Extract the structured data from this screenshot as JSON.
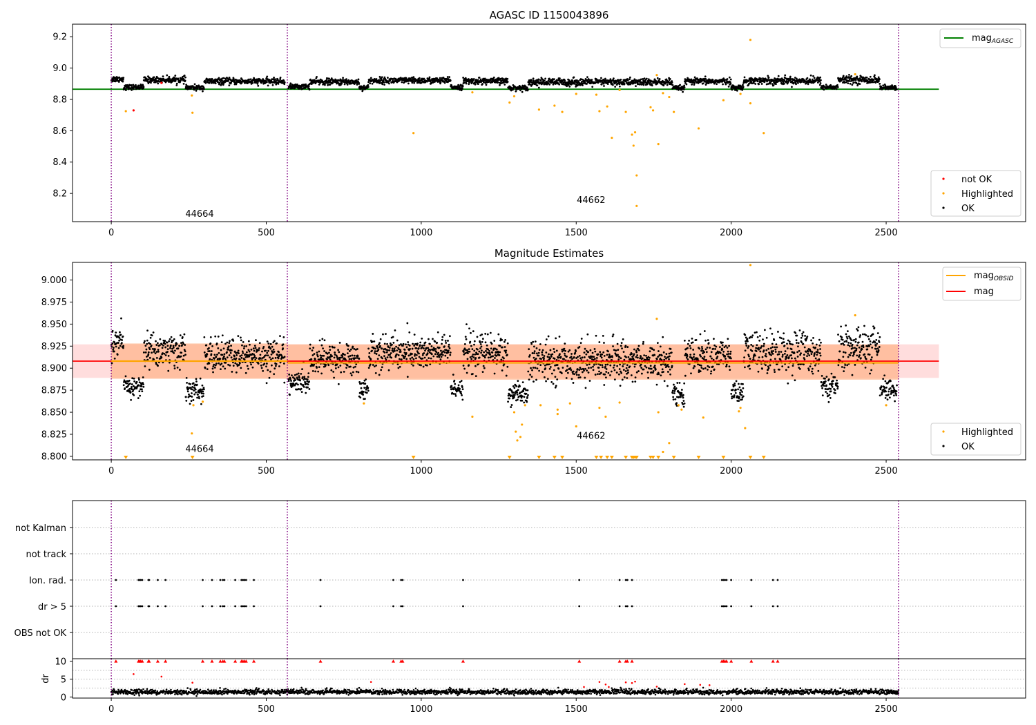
{
  "figure": {
    "title": "AGASC ID 1150043896"
  },
  "colors": {
    "ok": "#000000",
    "highlighted": "#ffa500",
    "not_ok": "#ff0000",
    "agasc_line": "#008000",
    "mag_line": "#ff0000",
    "mag_obsid_line": "#ffa500",
    "obs_boundary": "#800080",
    "band_obsid": "#ffb48c",
    "band_total": "#ffd2d2"
  },
  "chart_data": [
    {
      "id": "panel1",
      "type": "scatter",
      "title": "AGASC ID 1150043896",
      "xlim": [
        -125,
        2950
      ],
      "ylim": [
        8.02,
        9.28
      ],
      "xticks": [
        0,
        500,
        1000,
        1500,
        2000,
        2500
      ],
      "yticks": [
        8.2,
        8.4,
        8.6,
        8.8,
        9.0,
        9.2
      ],
      "ytick_format": 1,
      "obs_boundaries": [
        0,
        568,
        2540
      ],
      "obs_labels": [
        {
          "text": "44664",
          "x": 285,
          "y": 8.05
        },
        {
          "text": "44662",
          "x": 1548,
          "y": 8.14
        }
      ],
      "hlines": [
        {
          "name": "mag",
          "sub": "AGASC",
          "y": 8.865,
          "x0": -125,
          "x1": 2670,
          "color": "#008000"
        }
      ],
      "legend_top": [
        {
          "label": "mag",
          "sub": "AGASC",
          "color": "#008000"
        }
      ],
      "legend_bottom": [
        {
          "label": "not OK",
          "color": "#ff0000"
        },
        {
          "label": "Highlighted",
          "color": "#ffa500"
        },
        {
          "label": "OK",
          "color": "#000000"
        }
      ],
      "segments": [
        {
          "x0": 0,
          "x1": 40,
          "m": 8.93,
          "s": 0.01
        },
        {
          "x0": 40,
          "x1": 105,
          "m": 8.878,
          "s": 0.008
        },
        {
          "x0": 105,
          "x1": 240,
          "m": 8.925,
          "s": 0.01
        },
        {
          "x0": 240,
          "x1": 300,
          "m": 8.875,
          "s": 0.008
        },
        {
          "x0": 300,
          "x1": 560,
          "m": 8.915,
          "s": 0.01
        },
        {
          "x0": 572,
          "x1": 640,
          "m": 8.882,
          "s": 0.008
        },
        {
          "x0": 640,
          "x1": 800,
          "m": 8.912,
          "s": 0.01
        },
        {
          "x0": 800,
          "x1": 830,
          "m": 8.876,
          "s": 0.008
        },
        {
          "x0": 830,
          "x1": 1095,
          "m": 8.92,
          "s": 0.01
        },
        {
          "x0": 1095,
          "x1": 1135,
          "m": 8.879,
          "s": 0.008
        },
        {
          "x0": 1135,
          "x1": 1280,
          "m": 8.917,
          "s": 0.01
        },
        {
          "x0": 1280,
          "x1": 1345,
          "m": 8.874,
          "s": 0.008
        },
        {
          "x0": 1345,
          "x1": 1810,
          "m": 8.91,
          "s": 0.012
        },
        {
          "x0": 1810,
          "x1": 1850,
          "m": 8.872,
          "s": 0.008
        },
        {
          "x0": 1850,
          "x1": 2000,
          "m": 8.915,
          "s": 0.01
        },
        {
          "x0": 2000,
          "x1": 2040,
          "m": 8.875,
          "s": 0.008
        },
        {
          "x0": 2040,
          "x1": 2290,
          "m": 8.92,
          "s": 0.012
        },
        {
          "x0": 2290,
          "x1": 2345,
          "m": 8.879,
          "s": 0.008
        },
        {
          "x0": 2345,
          "x1": 2480,
          "m": 8.925,
          "s": 0.012
        },
        {
          "x0": 2480,
          "x1": 2535,
          "m": 8.874,
          "s": 0.008
        }
      ],
      "highlighted": [
        [
          47,
          8.725
        ],
        [
          260,
          8.825
        ],
        [
          262,
          8.715
        ],
        [
          975,
          8.585
        ],
        [
          1165,
          8.845
        ],
        [
          1285,
          8.78
        ],
        [
          1300,
          8.82
        ],
        [
          1380,
          8.735
        ],
        [
          1430,
          8.76
        ],
        [
          1455,
          8.72
        ],
        [
          1500,
          8.835
        ],
        [
          1565,
          8.83
        ],
        [
          1575,
          8.725
        ],
        [
          1600,
          8.755
        ],
        [
          1615,
          8.555
        ],
        [
          1640,
          8.86
        ],
        [
          1660,
          8.72
        ],
        [
          1680,
          8.575
        ],
        [
          1685,
          8.505
        ],
        [
          1690,
          8.59
        ],
        [
          1695,
          8.315
        ],
        [
          1695,
          8.12
        ],
        [
          1740,
          8.75
        ],
        [
          1748,
          8.73
        ],
        [
          1760,
          8.955
        ],
        [
          1765,
          8.515
        ],
        [
          1780,
          8.84
        ],
        [
          1800,
          8.815
        ],
        [
          1815,
          8.72
        ],
        [
          1895,
          8.615
        ],
        [
          1975,
          8.795
        ],
        [
          2030,
          8.835
        ],
        [
          2062,
          9.18
        ],
        [
          2062,
          8.775
        ],
        [
          2105,
          8.585
        ],
        [
          2400,
          8.96
        ]
      ],
      "not_ok": [
        [
          72,
          8.73
        ],
        [
          162,
          8.905
        ]
      ]
    },
    {
      "id": "panel2",
      "type": "scatter",
      "title": "Magnitude Estimates",
      "xlim": [
        -125,
        2950
      ],
      "ylim": [
        8.796,
        9.02
      ],
      "xticks": [
        0,
        500,
        1000,
        1500,
        2000,
        2500
      ],
      "yticks": [
        8.8,
        8.825,
        8.85,
        8.875,
        8.9,
        8.925,
        8.95,
        8.975,
        9.0
      ],
      "ytick_format": 3,
      "obs_boundaries": [
        0,
        568,
        2540
      ],
      "obs_labels": [
        {
          "text": "44664",
          "x": 285,
          "y": 8.805
        },
        {
          "text": "44662",
          "x": 1548,
          "y": 8.82
        }
      ],
      "bands": [
        {
          "y0": 8.889,
          "y1": 8.927,
          "x0": -125,
          "x1": 2670,
          "color": "#ffd2d2"
        },
        {
          "y0": 8.888,
          "y1": 8.928,
          "x0": 0,
          "x1": 568,
          "color": "#ffb48c"
        },
        {
          "y0": 8.887,
          "y1": 8.927,
          "x0": 568,
          "x1": 2540,
          "color": "#ffb48c"
        }
      ],
      "hlines": [
        {
          "name": "mag",
          "y": 8.908,
          "x0": -125,
          "x1": 2670,
          "color": "#ff0000"
        },
        {
          "name": "mag_OBSID",
          "y": 8.908,
          "x0": 0,
          "x1": 568,
          "color": "#ffa500"
        },
        {
          "name": "mag_OBSID",
          "y": 8.906,
          "x0": 568,
          "x1": 2540,
          "color": "#ffa500"
        }
      ],
      "legend_top": [
        {
          "label": "mag",
          "sub": "OBSID",
          "color": "#ffa500"
        },
        {
          "label": "mag",
          "sub": "",
          "color": "#ff0000"
        }
      ],
      "legend_bottom": [
        {
          "label": "Highlighted",
          "color": "#ffa500"
        },
        {
          "label": "OK",
          "color": "#000000"
        }
      ],
      "segments": [
        {
          "x0": 0,
          "x1": 40,
          "m": 8.928,
          "s": 0.008
        },
        {
          "x0": 40,
          "x1": 105,
          "m": 8.879,
          "s": 0.006
        },
        {
          "x0": 105,
          "x1": 240,
          "m": 8.92,
          "s": 0.01
        },
        {
          "x0": 240,
          "x1": 300,
          "m": 8.874,
          "s": 0.006
        },
        {
          "x0": 300,
          "x1": 560,
          "m": 8.914,
          "s": 0.01
        },
        {
          "x0": 572,
          "x1": 640,
          "m": 8.884,
          "s": 0.006
        },
        {
          "x0": 640,
          "x1": 800,
          "m": 8.91,
          "s": 0.009
        },
        {
          "x0": 800,
          "x1": 830,
          "m": 8.876,
          "s": 0.006
        },
        {
          "x0": 830,
          "x1": 1095,
          "m": 8.918,
          "s": 0.01
        },
        {
          "x0": 1095,
          "x1": 1135,
          "m": 8.878,
          "s": 0.006
        },
        {
          "x0": 1135,
          "x1": 1280,
          "m": 8.917,
          "s": 0.011
        },
        {
          "x0": 1280,
          "x1": 1345,
          "m": 8.87,
          "s": 0.006
        },
        {
          "x0": 1345,
          "x1": 1810,
          "m": 8.908,
          "s": 0.011
        },
        {
          "x0": 1810,
          "x1": 1850,
          "m": 8.87,
          "s": 0.006
        },
        {
          "x0": 1850,
          "x1": 2000,
          "m": 8.914,
          "s": 0.01
        },
        {
          "x0": 2000,
          "x1": 2040,
          "m": 8.872,
          "s": 0.006
        },
        {
          "x0": 2040,
          "x1": 2290,
          "m": 8.918,
          "s": 0.012
        },
        {
          "x0": 2290,
          "x1": 2345,
          "m": 8.879,
          "s": 0.006
        },
        {
          "x0": 2345,
          "x1": 2480,
          "m": 8.922,
          "s": 0.012
        },
        {
          "x0": 2480,
          "x1": 2535,
          "m": 8.875,
          "s": 0.006
        }
      ],
      "highlighted": [
        [
          260,
          8.826
        ],
        [
          265,
          8.858
        ],
        [
          295,
          8.862
        ],
        [
          815,
          8.86
        ],
        [
          1165,
          8.845
        ],
        [
          1300,
          8.85
        ],
        [
          1305,
          8.828
        ],
        [
          1310,
          8.818
        ],
        [
          1320,
          8.822
        ],
        [
          1325,
          8.836
        ],
        [
          1335,
          8.858
        ],
        [
          1385,
          8.858
        ],
        [
          1440,
          8.853
        ],
        [
          1440,
          8.848
        ],
        [
          1480,
          8.86
        ],
        [
          1500,
          8.834
        ],
        [
          1575,
          8.855
        ],
        [
          1595,
          8.845
        ],
        [
          1640,
          8.861
        ],
        [
          1760,
          8.956
        ],
        [
          1765,
          8.85
        ],
        [
          1780,
          8.805
        ],
        [
          1800,
          8.815
        ],
        [
          1830,
          8.858
        ],
        [
          1840,
          8.853
        ],
        [
          1910,
          8.844
        ],
        [
          2030,
          8.855
        ],
        [
          2025,
          8.851
        ],
        [
          2045,
          8.832
        ],
        [
          2062,
          9.017
        ],
        [
          2400,
          8.96
        ],
        [
          2500,
          8.858
        ]
      ],
      "below": [
        47,
        262,
        975,
        1285,
        1380,
        1430,
        1455,
        1565,
        1580,
        1600,
        1615,
        1660,
        1680,
        1685,
        1690,
        1695,
        1740,
        1748,
        1765,
        1815,
        1895,
        1975,
        2062,
        2105
      ]
    },
    {
      "id": "panel3",
      "type": "scatter",
      "title": "",
      "xlim": [
        -125,
        2950
      ],
      "flag_rows": [
        "not Kalman",
        "not track",
        "Ion. rad.",
        "dr > 5",
        "OBS not OK"
      ],
      "obs_boundaries": [
        0,
        568,
        2540
      ],
      "flag_points": [
        15,
        88,
        92,
        95,
        100,
        120,
        122,
        150,
        175,
        295,
        325,
        352,
        360,
        365,
        400,
        420,
        425,
        430,
        435,
        460,
        675,
        910,
        935,
        940,
        1135,
        1510,
        1640,
        1660,
        1665,
        1680,
        1970,
        1975,
        1980,
        1985,
        2000,
        2065,
        2135,
        2150
      ],
      "flag_rows_with_points": [
        "Ion. rad.",
        "dr > 5"
      ]
    },
    {
      "id": "panel4",
      "type": "scatter",
      "title": "",
      "ylabel": "dr",
      "xlim": [
        -125,
        2950
      ],
      "ylim": [
        -0.3,
        10.7
      ],
      "xticks": [
        0,
        500,
        1000,
        1500,
        2000,
        2500
      ],
      "yticks": [
        0,
        5,
        10
      ],
      "ytick_format": 0,
      "obs_boundaries": [
        0,
        568,
        2540
      ],
      "base": {
        "m": 1.1,
        "s": 0.4
      },
      "red_capped": [
        15,
        88,
        92,
        95,
        100,
        120,
        122,
        150,
        175,
        295,
        325,
        352,
        360,
        365,
        400,
        420,
        425,
        430,
        435,
        460,
        675,
        910,
        935,
        940,
        1135,
        1510,
        1640,
        1660,
        1665,
        1680,
        1970,
        1975,
        1980,
        1985,
        2000,
        2065,
        2135,
        2150
      ],
      "red_points": [
        [
          72,
          6.4
        ],
        [
          162,
          5.7
        ],
        [
          262,
          4.0
        ],
        [
          838,
          4.2
        ],
        [
          1525,
          2.8
        ],
        [
          1575,
          4.2
        ],
        [
          1595,
          3.5
        ],
        [
          1605,
          2.8
        ],
        [
          1660,
          4.1
        ],
        [
          1680,
          3.9
        ],
        [
          1690,
          4.3
        ],
        [
          1760,
          2.9
        ],
        [
          1850,
          3.6
        ],
        [
          1900,
          3.4
        ],
        [
          1930,
          3.3
        ]
      ]
    }
  ]
}
